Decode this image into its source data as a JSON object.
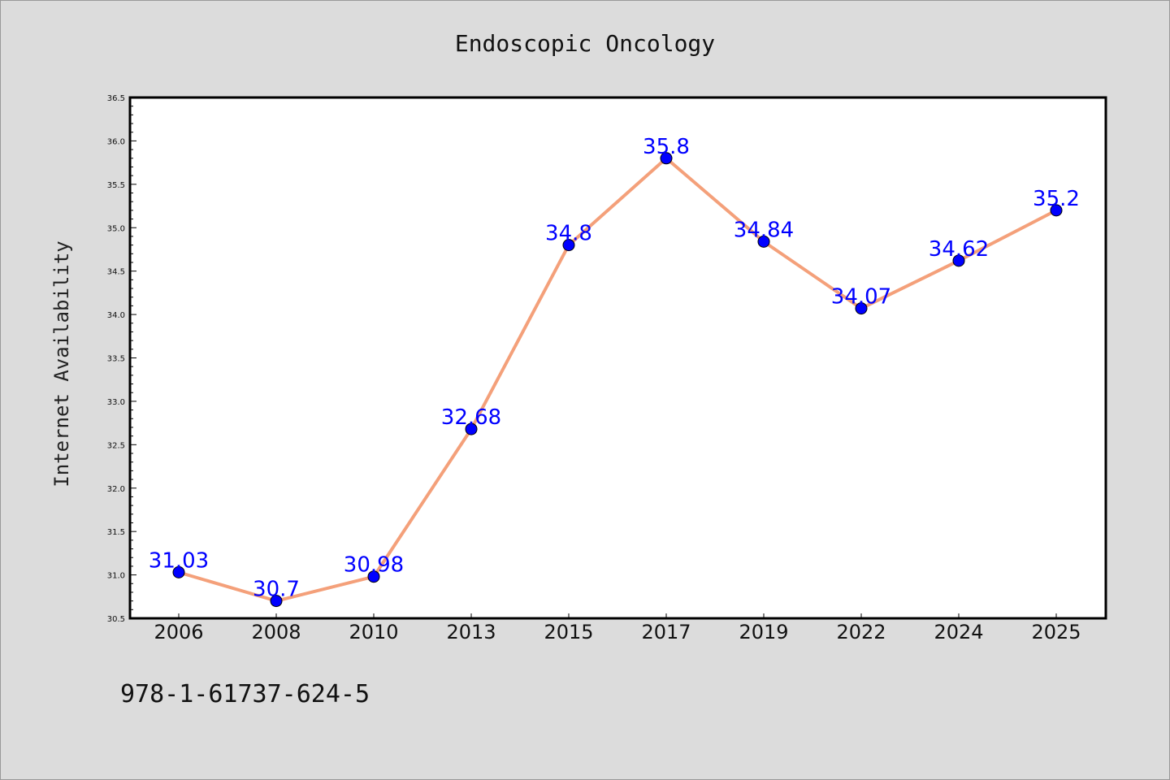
{
  "chart_data": {
    "type": "line",
    "title": "Endoscopic Oncology",
    "xlabel": "",
    "ylabel": "Internet Availability",
    "categories": [
      "2006",
      "2008",
      "2010",
      "2013",
      "2015",
      "2017",
      "2019",
      "2022",
      "2024",
      "2025"
    ],
    "series": [
      {
        "values": [
          31.03,
          30.7,
          30.98,
          32.68,
          34.8,
          35.8,
          34.84,
          34.07,
          34.62,
          35.2
        ],
        "data_labels": [
          "31.03",
          "30.7",
          "30.98",
          "32.68",
          "34.8",
          "35.8",
          "34.84",
          "34.07",
          "34.62",
          "35.2"
        ],
        "line_color": "#f4a07a",
        "marker_color": "#0000ff"
      }
    ],
    "ylim": [
      30.5,
      36.5
    ],
    "yticks": [
      "30.5",
      "31.0",
      "31.5",
      "32.0",
      "32.5",
      "33.0",
      "33.5",
      "34.0",
      "34.5",
      "35.0",
      "35.5",
      "36.0",
      "36.5"
    ],
    "grid": false,
    "legend": "none"
  },
  "footnote": "978-1-61737-624-5",
  "colors": {
    "background": "#dcdcdc",
    "plot_background": "#ffffff",
    "line": "#f4a07a",
    "marker": "#0000ff",
    "data_label": "#0000ff"
  }
}
